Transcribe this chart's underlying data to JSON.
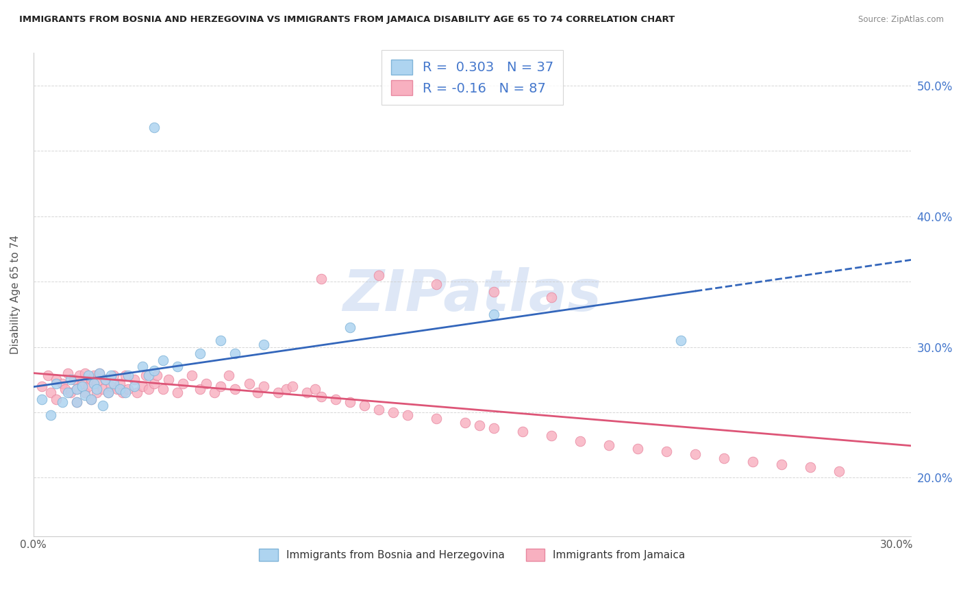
{
  "title": "IMMIGRANTS FROM BOSNIA AND HERZEGOVINA VS IMMIGRANTS FROM JAMAICA DISABILITY AGE 65 TO 74 CORRELATION CHART",
  "source": "Source: ZipAtlas.com",
  "ylabel": "Disability Age 65 to 74",
  "xlim": [
    0.0,
    0.305
  ],
  "ylim": [
    0.155,
    0.525
  ],
  "x_ticks": [
    0.0,
    0.05,
    0.1,
    0.15,
    0.2,
    0.25,
    0.3
  ],
  "x_tick_labels": [
    "0.0%",
    "",
    "",
    "",
    "",
    "",
    "30.0%"
  ],
  "y_ticks": [
    0.2,
    0.25,
    0.3,
    0.35,
    0.4,
    0.45,
    0.5
  ],
  "y_tick_labels": [
    "20.0%",
    "",
    "30.0%",
    "",
    "40.0%",
    "",
    "50.0%"
  ],
  "bosnia_R": 0.303,
  "bosnia_N": 37,
  "jamaica_R": -0.16,
  "jamaica_N": 87,
  "bosnia_color": "#aed4f0",
  "bosnia_edge_color": "#80b4d8",
  "jamaica_color": "#f8b0c0",
  "jamaica_edge_color": "#e888a0",
  "bosnia_line_color": "#3366bb",
  "jamaica_line_color": "#dd5577",
  "bosnia_line_solid_end": 0.23,
  "watermark_color": "#c8d8f0",
  "background_color": "#ffffff",
  "grid_color": "#cccccc",
  "bosnia_x": [
    0.003,
    0.006,
    0.008,
    0.01,
    0.012,
    0.013,
    0.015,
    0.015,
    0.017,
    0.018,
    0.019,
    0.02,
    0.021,
    0.022,
    0.023,
    0.024,
    0.025,
    0.026,
    0.027,
    0.028,
    0.03,
    0.032,
    0.033,
    0.035,
    0.038,
    0.04,
    0.042,
    0.045,
    0.05,
    0.058,
    0.065,
    0.07,
    0.08,
    0.11,
    0.16,
    0.225,
    0.042
  ],
  "bosnia_y": [
    0.26,
    0.248,
    0.272,
    0.258,
    0.265,
    0.275,
    0.268,
    0.258,
    0.27,
    0.263,
    0.278,
    0.26,
    0.272,
    0.268,
    0.28,
    0.255,
    0.275,
    0.265,
    0.278,
    0.272,
    0.268,
    0.265,
    0.278,
    0.27,
    0.285,
    0.278,
    0.282,
    0.29,
    0.285,
    0.295,
    0.305,
    0.295,
    0.302,
    0.315,
    0.325,
    0.305,
    0.468
  ],
  "jamaica_x": [
    0.003,
    0.005,
    0.006,
    0.008,
    0.008,
    0.01,
    0.011,
    0.012,
    0.013,
    0.014,
    0.015,
    0.015,
    0.016,
    0.017,
    0.018,
    0.018,
    0.019,
    0.02,
    0.02,
    0.021,
    0.022,
    0.022,
    0.023,
    0.024,
    0.025,
    0.026,
    0.027,
    0.028,
    0.029,
    0.03,
    0.031,
    0.032,
    0.033,
    0.035,
    0.036,
    0.038,
    0.039,
    0.04,
    0.042,
    0.043,
    0.045,
    0.047,
    0.05,
    0.052,
    0.055,
    0.058,
    0.06,
    0.063,
    0.065,
    0.068,
    0.07,
    0.075,
    0.078,
    0.08,
    0.085,
    0.088,
    0.09,
    0.095,
    0.098,
    0.1,
    0.105,
    0.11,
    0.115,
    0.12,
    0.125,
    0.13,
    0.14,
    0.15,
    0.155,
    0.16,
    0.17,
    0.18,
    0.19,
    0.2,
    0.21,
    0.22,
    0.23,
    0.24,
    0.25,
    0.26,
    0.27,
    0.28,
    0.1,
    0.12,
    0.14,
    0.16,
    0.18
  ],
  "jamaica_y": [
    0.27,
    0.278,
    0.265,
    0.275,
    0.26,
    0.272,
    0.268,
    0.28,
    0.265,
    0.275,
    0.268,
    0.258,
    0.278,
    0.272,
    0.265,
    0.28,
    0.27,
    0.275,
    0.26,
    0.278,
    0.272,
    0.265,
    0.28,
    0.268,
    0.275,
    0.265,
    0.27,
    0.278,
    0.268,
    0.272,
    0.265,
    0.278,
    0.268,
    0.275,
    0.265,
    0.27,
    0.278,
    0.268,
    0.272,
    0.278,
    0.268,
    0.275,
    0.265,
    0.272,
    0.278,
    0.268,
    0.272,
    0.265,
    0.27,
    0.278,
    0.268,
    0.272,
    0.265,
    0.27,
    0.265,
    0.268,
    0.27,
    0.265,
    0.268,
    0.262,
    0.26,
    0.258,
    0.255,
    0.252,
    0.25,
    0.248,
    0.245,
    0.242,
    0.24,
    0.238,
    0.235,
    0.232,
    0.228,
    0.225,
    0.222,
    0.22,
    0.218,
    0.215,
    0.212,
    0.21,
    0.208,
    0.205,
    0.352,
    0.355,
    0.348,
    0.342,
    0.338
  ]
}
